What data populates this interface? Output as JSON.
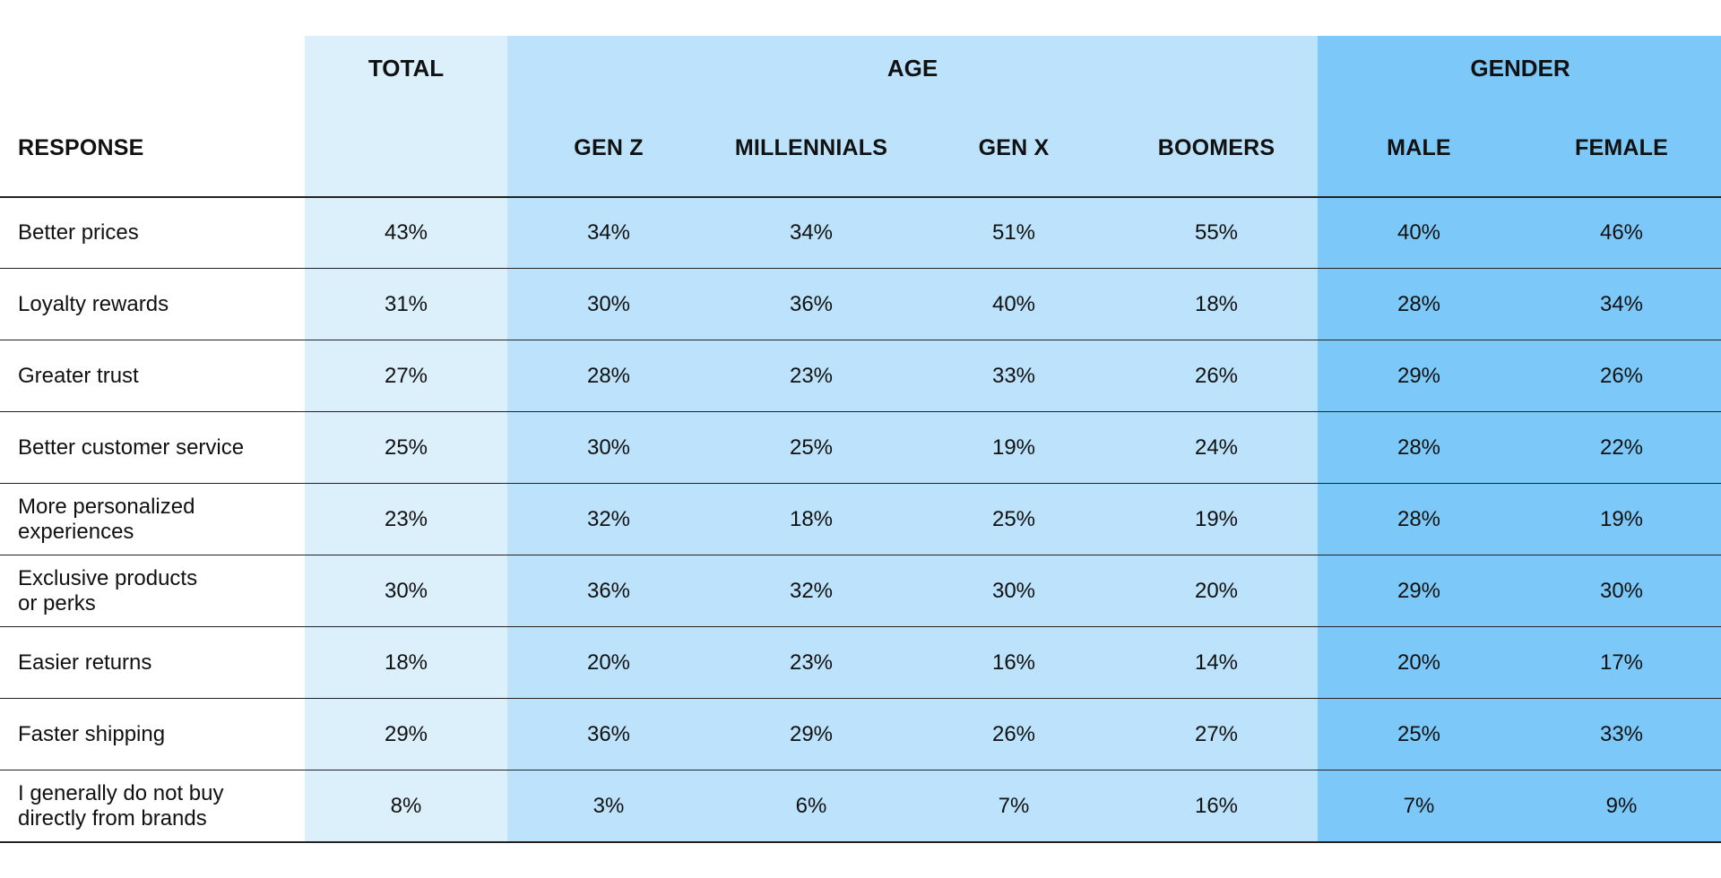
{
  "chart_data": {
    "type": "table",
    "colors": {
      "total_band": "#dcf0fc",
      "age_band": "#bce3fb",
      "gender_band": "#7cc8f8",
      "rule": "#222222"
    },
    "groups": [
      {
        "label": "TOTAL",
        "span": 1
      },
      {
        "label": "AGE",
        "span": 4
      },
      {
        "label": "GENDER",
        "span": 2
      }
    ],
    "response_header": "RESPONSE",
    "columns": [
      "",
      "GEN Z",
      "MILLENNIALS",
      "GEN X",
      "BOOMERS",
      "MALE",
      "FEMALE"
    ],
    "rows": [
      {
        "label": "Better prices",
        "values": [
          "43%",
          "34%",
          "34%",
          "51%",
          "55%",
          "40%",
          "46%"
        ]
      },
      {
        "label": "Loyalty rewards",
        "values": [
          "31%",
          "30%",
          "36%",
          "40%",
          "18%",
          "28%",
          "34%"
        ]
      },
      {
        "label": "Greater trust",
        "values": [
          "27%",
          "28%",
          "23%",
          "33%",
          "26%",
          "29%",
          "26%"
        ]
      },
      {
        "label": "Better customer service",
        "values": [
          "25%",
          "30%",
          "25%",
          "19%",
          "24%",
          "28%",
          "22%"
        ]
      },
      {
        "label": "More personalized\nexperiences",
        "values": [
          "23%",
          "32%",
          "18%",
          "25%",
          "19%",
          "28%",
          "19%"
        ]
      },
      {
        "label": "Exclusive products\nor perks",
        "values": [
          "30%",
          "36%",
          "32%",
          "30%",
          "20%",
          "29%",
          "30%"
        ]
      },
      {
        "label": "Easier returns",
        "values": [
          "18%",
          "20%",
          "23%",
          "16%",
          "14%",
          "20%",
          "17%"
        ]
      },
      {
        "label": "Faster shipping",
        "values": [
          "29%",
          "36%",
          "29%",
          "26%",
          "27%",
          "25%",
          "33%"
        ]
      },
      {
        "label": "I generally do not buy\ndirectly from brands",
        "values": [
          "8%",
          "3%",
          "6%",
          "7%",
          "16%",
          "7%",
          "9%"
        ]
      }
    ]
  }
}
